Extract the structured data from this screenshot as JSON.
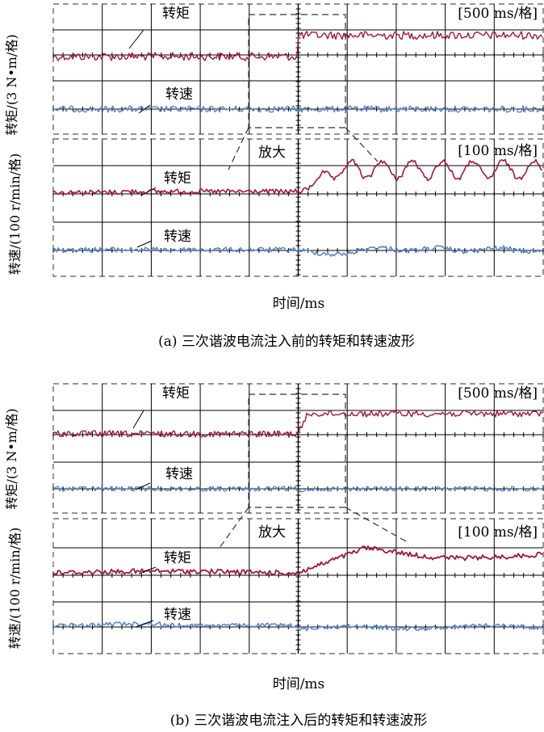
{
  "colors": {
    "torque": "#a3163e",
    "speed": "#5b86c8",
    "grid": "#000000"
  },
  "chart_data": [
    {
      "type": "line",
      "caption": "(a) 三次谐波电流注入前的转矩和转速波形",
      "xlabel": "时间/ms",
      "ylabel_torque": "转矩/(3 N•m/格)",
      "ylabel_speed": "转速/(100 r/min/格)",
      "zoom_label": "放大",
      "overview": {
        "time_scale": "[500 ms/格]",
        "grid": {
          "x_divisions": 10,
          "y_divisions": 4
        },
        "series": [
          {
            "name": "转矩",
            "step_at_div": 5.0,
            "level_before": 0.0,
            "level_after": 1.0,
            "unit": "格",
            "noise": 0.1
          },
          {
            "name": "转速",
            "level": 0.0,
            "unit": "格",
            "noise": 0.07
          }
        ]
      },
      "zoom": {
        "time_scale": "[100 ms/格]",
        "grid": {
          "x_divisions": 10,
          "y_divisions": 4
        },
        "series": [
          {
            "name": "转矩",
            "step_at_div": 5.0,
            "rise_divs": 0.8,
            "level_before": 0.0,
            "level_after": 1.0,
            "ripple_amp": 0.22,
            "ripple_period_divs": 0.62,
            "unit": "格"
          },
          {
            "name": "转速",
            "level": 0.0,
            "dip_at_div": 5.0,
            "dip_depth": 0.25,
            "ripple_amp": 0.08,
            "unit": "格"
          }
        ]
      }
    },
    {
      "type": "line",
      "caption": "(b) 三次谐波电流注入后的转矩和转速波形",
      "xlabel": "时间/ms",
      "ylabel_torque": "转矩/(3 N•m/格)",
      "ylabel_speed": "转速/(100 r/min/格)",
      "zoom_label": "放大",
      "overview": {
        "time_scale": "[500 ms/格]",
        "grid": {
          "x_divisions": 10,
          "y_divisions": 4
        },
        "series": [
          {
            "name": "转矩",
            "step_at_div": 5.0,
            "level_before": 0.0,
            "level_after": 0.85,
            "unit": "格",
            "noise": 0.06
          },
          {
            "name": "转速",
            "level": 0.0,
            "unit": "格",
            "noise": 0.05
          }
        ]
      },
      "zoom": {
        "time_scale": "[100 ms/格]",
        "grid": {
          "x_divisions": 10,
          "y_divisions": 4
        },
        "series": [
          {
            "name": "转矩",
            "step_at_div": 5.0,
            "rise_divs": 1.4,
            "level_before": 0.0,
            "level_after": 0.7,
            "ripple_amp": 0.05,
            "ripple_period_divs": 0.9,
            "unit": "格"
          },
          {
            "name": "转速",
            "level": 0.0,
            "dip_at_div": 5.0,
            "dip_depth": 0.1,
            "ripple_amp": 0.04,
            "unit": "格"
          }
        ]
      }
    }
  ]
}
